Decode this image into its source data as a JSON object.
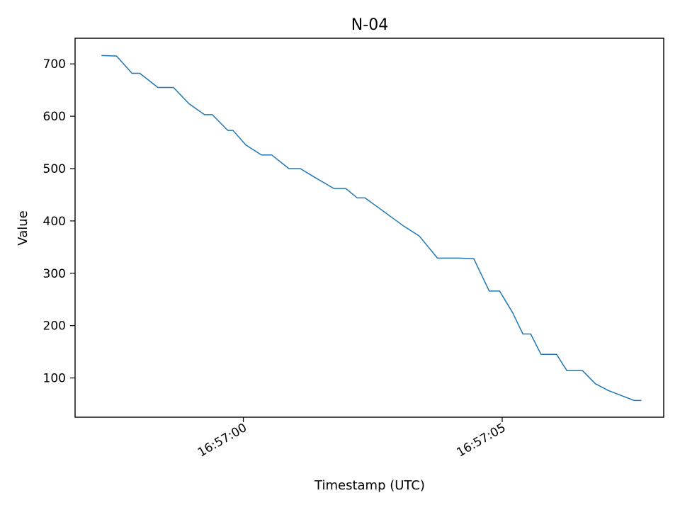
{
  "chart_data": {
    "type": "line",
    "title": "N-04",
    "xlabel": "Timestamp (UTC)",
    "ylabel": "Value",
    "x_ticks": [
      "16:57:00",
      "16:57:05"
    ],
    "y_ticks": [
      100,
      200,
      300,
      400,
      500,
      600,
      700
    ],
    "xlim": [
      "16:56:56.75",
      "16:57:08.12"
    ],
    "ylim": [
      25,
      749
    ],
    "grid": false,
    "series": [
      {
        "color": "#1f77b4",
        "x": [
          "16:56:57.27",
          "16:56:57.55",
          "16:56:57.85",
          "16:56:58.00",
          "16:56:58.35",
          "16:56:58.65",
          "16:56:58.95",
          "16:56:59.25",
          "16:56:59.40",
          "16:56:59.70",
          "16:56:59.80",
          "16:57:00.05",
          "16:57:00.35",
          "16:57:00.55",
          "16:57:00.88",
          "16:57:01.10",
          "16:57:01.40",
          "16:57:01.75",
          "16:57:01.98",
          "16:57:02.20",
          "16:57:02.35",
          "16:57:02.60",
          "16:57:03.10",
          "16:57:03.40",
          "16:57:03.75",
          "16:57:04.15",
          "16:57:04.45",
          "16:57:04.75",
          "16:57:04.95",
          "16:57:05.20",
          "16:57:05.40",
          "16:57:05.55",
          "16:57:05.75",
          "16:57:06.05",
          "16:57:06.25",
          "16:57:06.55",
          "16:57:06.80",
          "16:57:07.05",
          "16:57:07.55",
          "16:57:07.68"
        ],
        "values": [
          716,
          715,
          682,
          682,
          655,
          655,
          624,
          603,
          603,
          573,
          573,
          545,
          526,
          526,
          500,
          500,
          482,
          462,
          462,
          444,
          444,
          426,
          390,
          371,
          329,
          329,
          328,
          266,
          266,
          225,
          184,
          184,
          145,
          145,
          114,
          114,
          89,
          76,
          57,
          57
        ]
      }
    ]
  }
}
